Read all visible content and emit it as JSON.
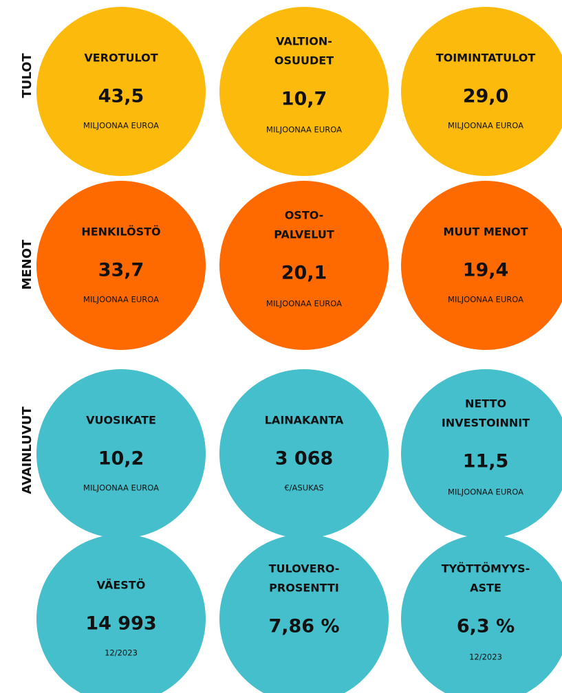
{
  "rows": [
    {
      "label": "TULOT",
      "color": "#fcbb0c",
      "items": [
        {
          "title": [
            "VEROTULOT"
          ],
          "value": "43,5",
          "unit": "MILJOONAA EUROA"
        },
        {
          "title": [
            "VALTION-",
            "OSUUDET"
          ],
          "value": "10,7",
          "unit": "MILJOONAA EUROA"
        },
        {
          "title": [
            "TOIMINTATULOT"
          ],
          "value": "29,0",
          "unit": "MILJOONAA EUROA"
        }
      ]
    },
    {
      "label": "MENOT",
      "color": "#ff6a00",
      "items": [
        {
          "title": [
            "HENKILÖSTÖ"
          ],
          "value": "33,7",
          "unit": "MILJOONAA EUROA"
        },
        {
          "title": [
            "OSTO-",
            "PALVELUT"
          ],
          "value": "20,1",
          "unit": "MILJOONAA EUROA"
        },
        {
          "title": [
            "MUUT MENOT"
          ],
          "value": "19,4",
          "unit": "MILJOONAA EUROA"
        }
      ]
    },
    {
      "label": "AVAINLUVUT",
      "color": "#45bfcc",
      "items": [
        {
          "title": [
            "VUOSIKATE"
          ],
          "value": "10,2",
          "unit": "MILJOONAA EUROA"
        },
        {
          "title": [
            "LAINAKANTA"
          ],
          "value": "3 068",
          "unit": "€/ASUKAS"
        },
        {
          "title": [
            "NETTO",
            "INVESTOINNIT"
          ],
          "value": "11,5",
          "unit": "MILJOONAA EUROA"
        }
      ]
    },
    {
      "color": "#45bfcc",
      "items": [
        {
          "title": [
            "VÄESTÖ"
          ],
          "value": "14 993",
          "unit": "12/2023"
        },
        {
          "title": [
            "TULOVERO-",
            "PROSENTTI"
          ],
          "value": "7,86 %"
        },
        {
          "title": [
            "TYÖTTÖMYYS-",
            "ASTE"
          ],
          "value": "6,3 %",
          "unit": "12/2023"
        }
      ]
    }
  ]
}
